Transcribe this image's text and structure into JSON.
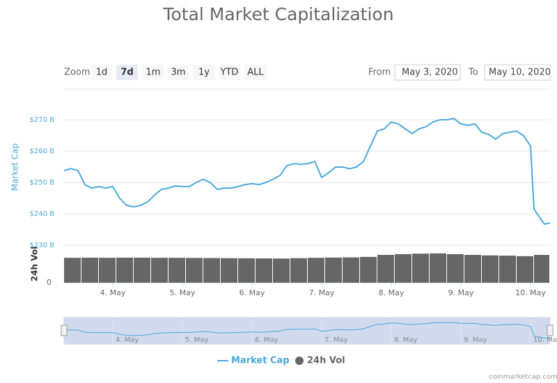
{
  "header": {
    "zoom_label": "Zoom",
    "zoom_buttons": [
      {
        "label": "1d"
      },
      {
        "label": "7d",
        "selected": true
      },
      {
        "label": "1m"
      },
      {
        "label": "3m"
      },
      {
        "label": "1y"
      },
      {
        "label": "YTD"
      },
      {
        "label": "ALL"
      }
    ],
    "from_label": "From",
    "from_value": "May 3, 2020",
    "to_label": "To",
    "to_value": "May 10, 2020"
  },
  "chart_data": {
    "type": "line",
    "title": "Total Market Capitalization",
    "y_axis_label": "Market Cap",
    "y2_axis_label": "24h Vol",
    "xlim": [
      3.3,
      10.28
    ],
    "xticks": [
      {
        "value": 4,
        "label": "4. May"
      },
      {
        "value": 5,
        "label": "5. May"
      },
      {
        "value": 6,
        "label": "6. May"
      },
      {
        "value": 7,
        "label": "7. May"
      },
      {
        "value": 8,
        "label": "8. May"
      },
      {
        "value": 9,
        "label": "9. May"
      },
      {
        "value": 10,
        "label": "10. May"
      }
    ],
    "ylim": [
      230,
      275
    ],
    "yticks": [
      {
        "value": 230,
        "label": "$230 B"
      },
      {
        "value": 240,
        "label": "$240 B"
      },
      {
        "value": 250,
        "label": "$250 B"
      },
      {
        "value": 260,
        "label": "$260 B"
      },
      {
        "value": 270,
        "label": "$270 B"
      }
    ],
    "y2lim": [
      0,
      300
    ],
    "y2ticks": [
      0
    ],
    "grid": true,
    "legend": "bottom",
    "series": [
      {
        "name": "Market Cap",
        "type": "line",
        "color": "#4aa8dc",
        "x": [
          3.3,
          3.4,
          3.5,
          3.6,
          3.7,
          3.8,
          3.9,
          4.0,
          4.1,
          4.2,
          4.3,
          4.4,
          4.5,
          4.6,
          4.7,
          4.8,
          4.9,
          5.0,
          5.1,
          5.2,
          5.3,
          5.4,
          5.5,
          5.6,
          5.7,
          5.8,
          5.9,
          6.0,
          6.1,
          6.2,
          6.3,
          6.4,
          6.5,
          6.6,
          6.7,
          6.8,
          6.9,
          7.0,
          7.1,
          7.2,
          7.3,
          7.4,
          7.5,
          7.6,
          7.7,
          7.8,
          7.9,
          8.0,
          8.1,
          8.2,
          8.3,
          8.4,
          8.5,
          8.6,
          8.7,
          8.8,
          8.9,
          9.0,
          9.1,
          9.2,
          9.3,
          9.4,
          9.5,
          9.6,
          9.7,
          9.8,
          9.9,
          10.0,
          10.05,
          10.1,
          10.2,
          10.28
        ],
        "values": [
          253.8,
          254.4,
          253.8,
          249.3,
          248.2,
          248.7,
          248.2,
          248.7,
          244.9,
          242.7,
          242.2,
          242.7,
          243.8,
          246.0,
          247.8,
          248.2,
          248.9,
          248.7,
          248.7,
          250.0,
          251.0,
          250.0,
          247.8,
          248.2,
          248.2,
          248.7,
          249.3,
          249.6,
          249.3,
          250.0,
          251.0,
          252.2,
          255.3,
          256.0,
          255.8,
          256.0,
          256.7,
          251.6,
          253.1,
          254.9,
          254.9,
          254.4,
          254.9,
          256.7,
          261.6,
          266.4,
          267.1,
          269.3,
          268.7,
          267.1,
          265.6,
          267.1,
          267.8,
          269.3,
          270.0,
          270.0,
          270.4,
          268.7,
          268.2,
          268.7,
          266.0,
          265.3,
          263.8,
          265.6,
          266.0,
          266.4,
          264.9,
          261.6,
          241.6,
          239.8,
          236.7,
          237.1
        ]
      },
      {
        "name": "24h Vol",
        "type": "bar",
        "axis": "y2",
        "color": "#666666",
        "x": [
          3.3,
          3.55,
          3.8,
          4.05,
          4.3,
          4.55,
          4.8,
          5.05,
          5.3,
          5.55,
          5.8,
          6.05,
          6.3,
          6.55,
          6.8,
          7.05,
          7.3,
          7.55,
          7.8,
          8.05,
          8.3,
          8.55,
          8.8,
          9.05,
          9.3,
          9.55,
          9.8,
          10.05
        ],
        "values": [
          199,
          200,
          199,
          200,
          200,
          199,
          199,
          198,
          197,
          196,
          195,
          194,
          193,
          196,
          199,
          201,
          202,
          206,
          222,
          228,
          232,
          234,
          228,
          222,
          218,
          216,
          212,
          222
        ]
      }
    ]
  },
  "credit": "coinmarketcap.com"
}
